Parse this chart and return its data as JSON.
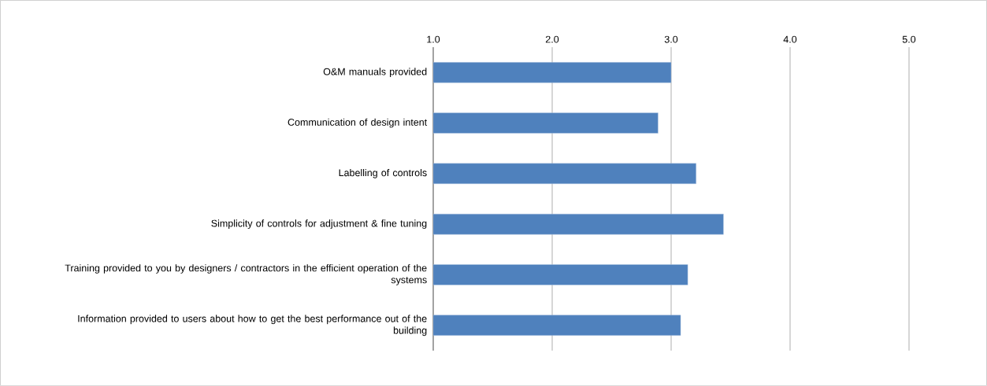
{
  "chart_data": {
    "type": "bar",
    "orientation": "horizontal",
    "categories": [
      "O&M manuals provided",
      "Communication of design intent",
      "Labelling of controls",
      "Simplicity of controls for adjustment & fine tuning",
      "Training provided to you by designers / contractors in the efficient operation of the systems",
      "Information provided to users about how to get the best performance out of the building"
    ],
    "values": [
      3.0,
      2.89,
      3.21,
      3.44,
      3.14,
      3.08
    ],
    "color": "#4f81bd",
    "xlim": [
      1,
      5
    ],
    "xticks": [
      {
        "value": 1,
        "label": "1.0"
      },
      {
        "value": 2,
        "label": "2.0"
      },
      {
        "value": 3,
        "label": "3.0"
      },
      {
        "value": 4,
        "label": "4.0"
      },
      {
        "value": 5,
        "label": "5.0"
      }
    ],
    "grid": "x"
  }
}
